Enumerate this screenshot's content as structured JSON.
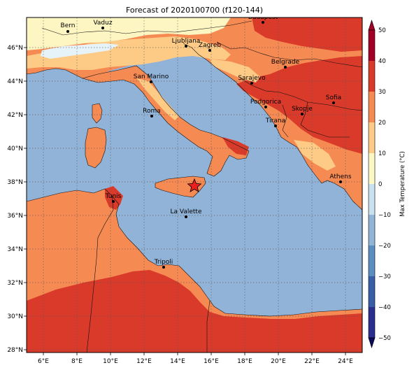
{
  "title": "Forecast of 2020100700 (f120-144)",
  "map": {
    "lon_range": [
      5,
      25
    ],
    "lat_range": [
      28,
      48
    ],
    "x_ticks": [
      {
        "lon": 6,
        "label": "6°E"
      },
      {
        "lon": 8,
        "label": "8°E"
      },
      {
        "lon": 10,
        "label": "10°E"
      },
      {
        "lon": 12,
        "label": "12°E"
      },
      {
        "lon": 14,
        "label": "14°E"
      },
      {
        "lon": 16,
        "label": "16°E"
      },
      {
        "lon": 18,
        "label": "18°E"
      },
      {
        "lon": 20,
        "label": "20°E"
      },
      {
        "lon": 22,
        "label": "22°E"
      },
      {
        "lon": 24,
        "label": "24°E"
      }
    ],
    "y_ticks": [
      {
        "lat": 28,
        "label": "28°N"
      },
      {
        "lat": 30,
        "label": "30°N"
      },
      {
        "lat": 32,
        "label": "32°N"
      },
      {
        "lat": 34,
        "label": "34°N"
      },
      {
        "lat": 36,
        "label": "36°N"
      },
      {
        "lat": 38,
        "label": "38°N"
      },
      {
        "lat": 40,
        "label": "40°N"
      },
      {
        "lat": 42,
        "label": "42°N"
      },
      {
        "lat": 44,
        "label": "44°N"
      },
      {
        "lat": 46,
        "label": "46°N"
      }
    ],
    "grid": true,
    "cities": [
      {
        "name": "Bern",
        "lon": 7.45,
        "lat": 46.95
      },
      {
        "name": "Vaduz",
        "lon": 9.52,
        "lat": 47.14
      },
      {
        "name": "Budapest",
        "lon": 19.04,
        "lat": 47.5
      },
      {
        "name": "Ljubljana",
        "lon": 14.51,
        "lat": 46.06
      },
      {
        "name": "Zagreb",
        "lon": 15.98,
        "lat": 45.81
      },
      {
        "name": "Belgrade",
        "lon": 20.46,
        "lat": 44.82
      },
      {
        "name": "San Marino",
        "lon": 12.45,
        "lat": 43.94
      },
      {
        "name": "Sarajevo",
        "lon": 18.41,
        "lat": 43.86
      },
      {
        "name": "Sofia",
        "lon": 23.32,
        "lat": 42.7
      },
      {
        "name": "Podgorica",
        "lon": 19.26,
        "lat": 42.44
      },
      {
        "name": "Skopje",
        "lon": 21.43,
        "lat": 42.0
      },
      {
        "name": "Roma",
        "lon": 12.5,
        "lat": 41.9
      },
      {
        "name": "Tirana",
        "lon": 19.82,
        "lat": 41.33
      },
      {
        "name": "Athens",
        "lon": 23.73,
        "lat": 37.98
      },
      {
        "name": "Tunis",
        "lon": 10.18,
        "lat": 36.81
      },
      {
        "name": "La Valette",
        "lon": 14.51,
        "lat": 35.9
      },
      {
        "name": "Tripoli",
        "lon": 13.19,
        "lat": 32.89
      }
    ],
    "marker": {
      "symbol": "star",
      "lon": 15.0,
      "lat": 37.75,
      "color": "#e8201f"
    }
  },
  "colorbar": {
    "label": "Max Temperature (°C)",
    "levels": [
      -50,
      -40,
      -30,
      -20,
      -10,
      0,
      10,
      20,
      30,
      40,
      50
    ],
    "tick_labels": [
      "−50",
      "−40",
      "−30",
      "−20",
      "−10",
      "0",
      "10",
      "20",
      "30",
      "40",
      "50"
    ],
    "colors": [
      "#2b2d8f",
      "#3a5da8",
      "#5b8ec0",
      "#91b5d7",
      "#c8e1ec",
      "#fbf8c3",
      "#fdcb86",
      "#f68a53",
      "#d93a2a",
      "#a40026"
    ],
    "extend": "both"
  },
  "colors": {
    "sea": "#91b3d8",
    "warm": "#f68a53",
    "hot": "#d93a2a",
    "mild": "#fdcb86",
    "cool": "#fdf5c2",
    "cold": "#e6f3f8"
  }
}
